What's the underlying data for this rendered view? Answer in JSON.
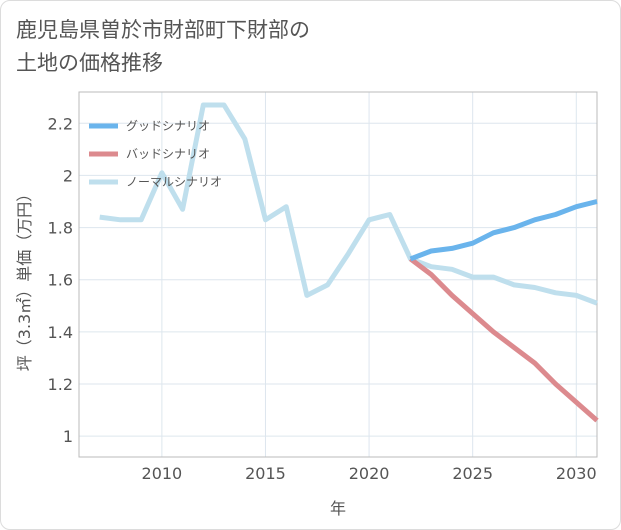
{
  "title_line1": "鹿児島県曽於市財部町下財部の",
  "title_line2": "土地の価格推移",
  "chart_data": {
    "type": "line",
    "title": "鹿児島県曽於市財部町下財部の土地の価格推移",
    "xlabel": "年",
    "ylabel": "坪（3.3㎡）単価（万円）",
    "xlim": [
      2006,
      2031
    ],
    "ylim": [
      0.92,
      2.32
    ],
    "xticks": [
      2010,
      2015,
      2020,
      2025,
      2030
    ],
    "yticks": [
      1,
      1.2,
      1.4,
      1.6,
      1.8,
      2,
      2.2
    ],
    "grid": true,
    "legend_position": "top-left",
    "series": [
      {
        "name": "グッドシナリオ",
        "color": "#6ab4ec",
        "x": [
          2022,
          2023,
          2024,
          2025,
          2026,
          2027,
          2028,
          2029,
          2030,
          2031
        ],
        "y": [
          1.68,
          1.71,
          1.72,
          1.74,
          1.78,
          1.8,
          1.83,
          1.85,
          1.88,
          1.9
        ]
      },
      {
        "name": "バッドシナリオ",
        "color": "#dc8a8e",
        "x": [
          2022,
          2023,
          2024,
          2025,
          2026,
          2027,
          2028,
          2029,
          2030,
          2031
        ],
        "y": [
          1.68,
          1.62,
          1.54,
          1.47,
          1.4,
          1.34,
          1.28,
          1.2,
          1.13,
          1.06
        ]
      },
      {
        "name": "ノーマルシナリオ",
        "color": "#bfdfed",
        "x": [
          2007,
          2008,
          2009,
          2010,
          2011,
          2012,
          2013,
          2014,
          2015,
          2016,
          2017,
          2018,
          2019,
          2020,
          2021,
          2022,
          2023,
          2024,
          2025,
          2026,
          2027,
          2028,
          2029,
          2030,
          2031
        ],
        "y": [
          1.84,
          1.83,
          1.83,
          2.01,
          1.87,
          2.27,
          2.27,
          2.14,
          1.83,
          1.88,
          1.54,
          1.58,
          1.7,
          1.83,
          1.85,
          1.68,
          1.65,
          1.64,
          1.61,
          1.61,
          1.58,
          1.57,
          1.55,
          1.54,
          1.51
        ]
      }
    ]
  }
}
